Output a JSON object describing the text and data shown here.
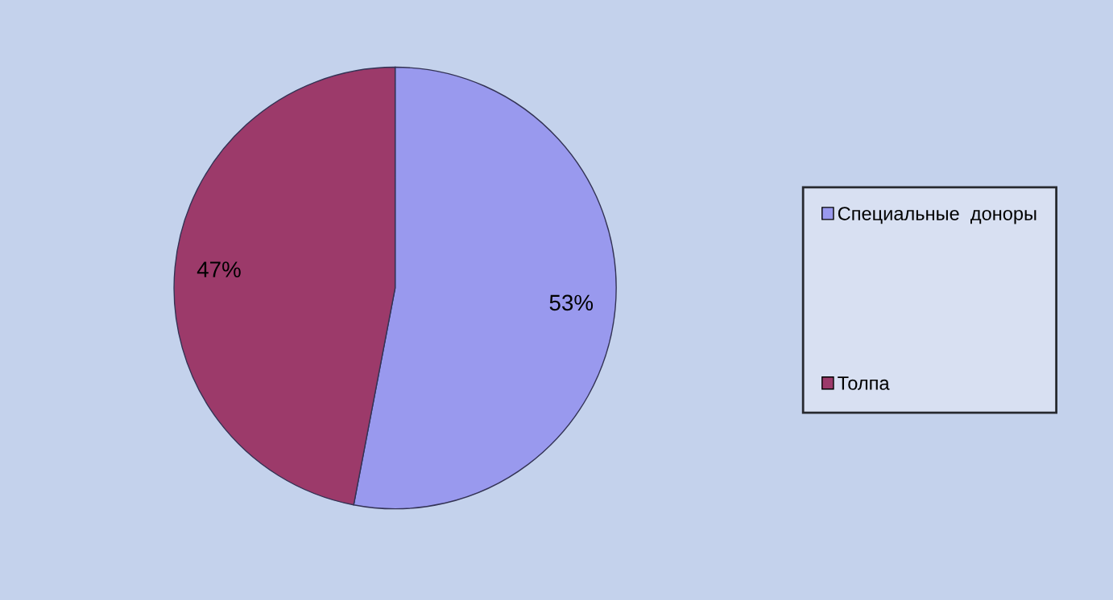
{
  "chart_data": {
    "type": "pie",
    "categories": [
      "Специальные  доноры",
      "Толпа"
    ],
    "values": [
      53,
      47
    ],
    "colors": [
      "#9999ee",
      "#9c3a6a"
    ],
    "value_labels": [
      "53%",
      "47%"
    ],
    "legend": "right"
  }
}
